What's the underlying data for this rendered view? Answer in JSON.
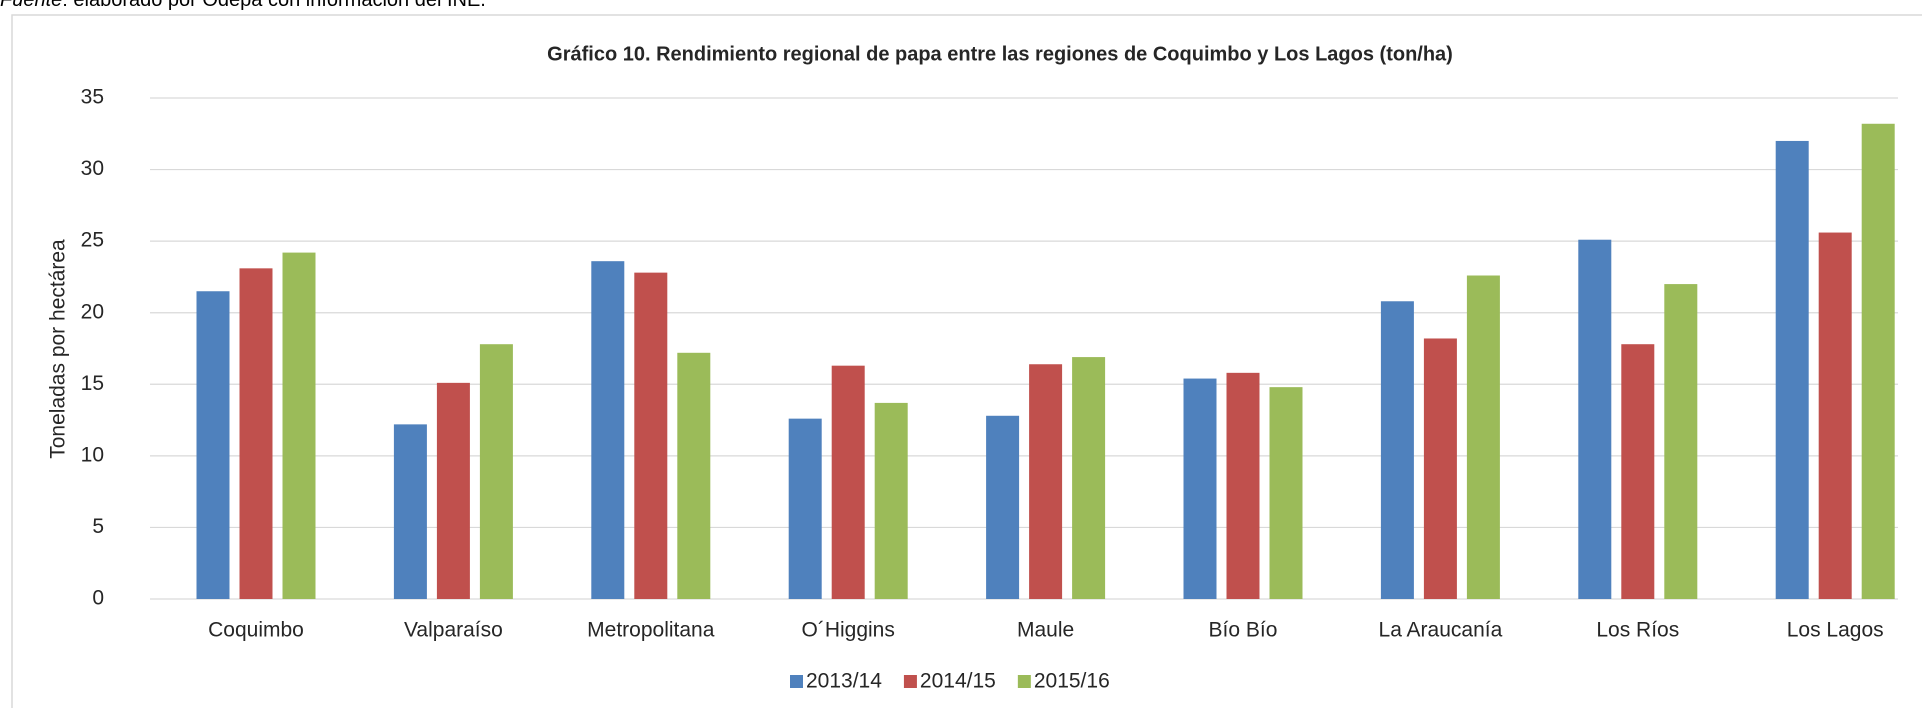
{
  "source_note": {
    "label": "Fuente",
    "text": ": elaborado por Odepa con información del INE."
  },
  "chart_data": {
    "type": "bar",
    "title": "Gráfico 10. Rendimiento regional de papa entre las regiones de Coquimbo y Los Lagos (ton/ha)",
    "y_label": "Toneladas por hectárea",
    "categories": [
      "Coquimbo",
      "Valparaíso",
      "Metropolitana",
      "O´Higgins",
      "Maule",
      "Bío Bío",
      "La Araucanía",
      "Los Ríos",
      "Los Lagos"
    ],
    "series": [
      {
        "name": "2013/14",
        "color": "#4f81bd",
        "values": [
          21.5,
          12.2,
          23.6,
          12.6,
          12.8,
          15.4,
          20.8,
          25.1,
          32.0
        ]
      },
      {
        "name": "2014/15",
        "color": "#c0504d",
        "values": [
          23.1,
          15.1,
          22.8,
          16.3,
          16.4,
          15.8,
          18.2,
          17.8,
          25.6
        ]
      },
      {
        "name": "2015/16",
        "color": "#9bbb59",
        "values": [
          24.2,
          17.8,
          17.2,
          13.7,
          16.9,
          14.8,
          22.6,
          22.0,
          33.2
        ]
      }
    ],
    "ylim": [
      0,
      35
    ],
    "yticks": [
      0,
      5,
      10,
      15,
      20,
      25,
      30,
      35
    ],
    "grid": true,
    "legend": "bottom"
  }
}
